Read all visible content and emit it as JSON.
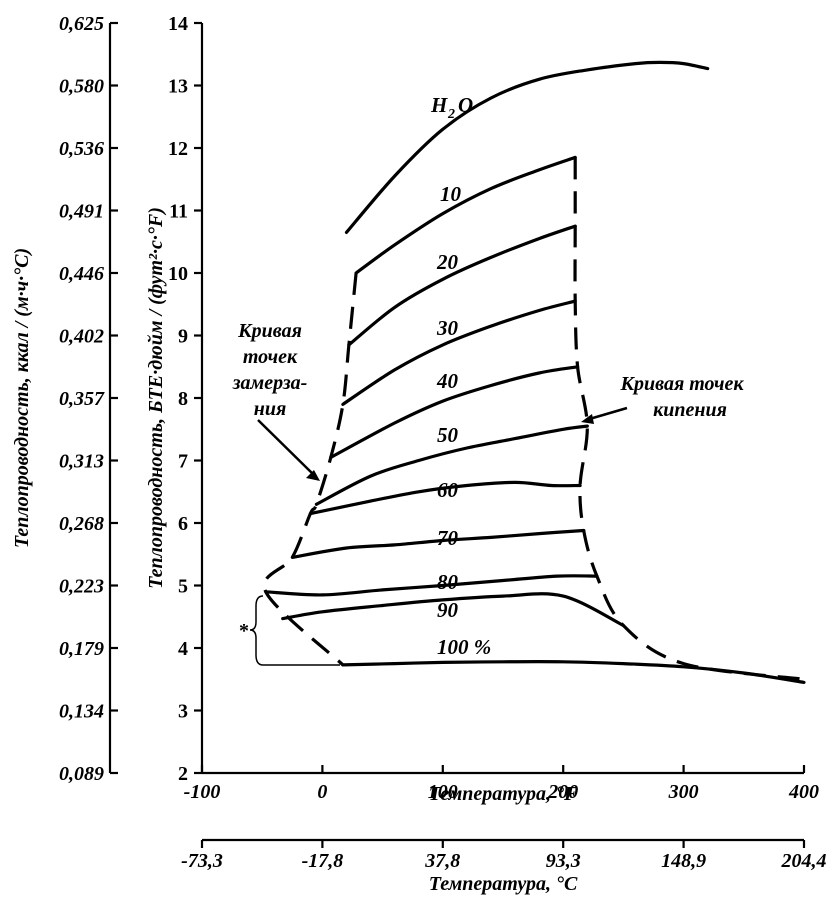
{
  "chart_data": {
    "type": "line",
    "x_axis": {
      "label": "Температура, °F",
      "ticks": [
        "-100",
        "0",
        "100",
        "200",
        "300",
        "400"
      ],
      "range": [
        -100,
        400
      ]
    },
    "x_axis_secondary": {
      "label": "Температура, °С",
      "ticks": [
        "-73,3",
        "-17,8",
        "37,8",
        "93,3",
        "148,9",
        "204,4"
      ]
    },
    "y_axis": {
      "label": "Теплопроводность, БТЕ·дюйм / (фут²·с·°F)",
      "ticks": [
        "2",
        "3",
        "4",
        "5",
        "6",
        "7",
        "8",
        "9",
        "10",
        "11",
        "12",
        "13",
        "14"
      ],
      "range": [
        2,
        14
      ]
    },
    "y_axis_secondary": {
      "label": "Теплопроводность, ккал / (м·ч·°С)",
      "ticks": [
        "0,089",
        "0,134",
        "0,179",
        "0,223",
        "0,268",
        "0,313",
        "0,357",
        "0,402",
        "0,446",
        "0,491",
        "0,536",
        "0,580",
        "0,625"
      ]
    },
    "series": [
      {
        "name": "H₂O",
        "x": [
          20,
          60,
          100,
          140,
          180,
          220,
          260,
          280,
          300,
          320
        ],
        "y": [
          10.65,
          11.55,
          12.3,
          12.8,
          13.1,
          13.25,
          13.35,
          13.37,
          13.35,
          13.27
        ]
      },
      {
        "name": "10",
        "x": [
          28,
          60,
          100,
          140,
          180,
          210
        ],
        "y": [
          10.0,
          10.45,
          10.95,
          11.35,
          11.65,
          11.85
        ]
      },
      {
        "name": "20",
        "x": [
          22,
          60,
          100,
          140,
          180,
          210
        ],
        "y": [
          8.85,
          9.45,
          9.9,
          10.25,
          10.55,
          10.75
        ]
      },
      {
        "name": "30",
        "x": [
          17,
          60,
          100,
          140,
          180,
          210
        ],
        "y": [
          7.9,
          8.45,
          8.85,
          9.15,
          9.4,
          9.55
        ]
      },
      {
        "name": "40",
        "x": [
          7,
          60,
          100,
          140,
          180,
          212
        ],
        "y": [
          7.05,
          7.6,
          7.95,
          8.2,
          8.4,
          8.5
        ]
      },
      {
        "name": "50",
        "x": [
          -5,
          40,
          80,
          120,
          160,
          200,
          220
        ],
        "y": [
          6.3,
          6.75,
          7.0,
          7.2,
          7.35,
          7.5,
          7.55
        ]
      },
      {
        "name": "60",
        "x": [
          -10,
          40,
          80,
          120,
          160,
          190,
          214
        ],
        "y": [
          6.15,
          6.35,
          6.5,
          6.6,
          6.65,
          6.6,
          6.6
        ]
      },
      {
        "name": "70",
        "x": [
          -25,
          20,
          60,
          100,
          140,
          180,
          217
        ],
        "y": [
          5.45,
          5.6,
          5.65,
          5.72,
          5.77,
          5.83,
          5.88
        ]
      },
      {
        "name": "80",
        "x": [
          -47,
          0,
          50,
          100,
          150,
          195,
          228
        ],
        "y": [
          4.9,
          4.85,
          4.93,
          5.0,
          5.08,
          5.15,
          5.15
        ]
      },
      {
        "name": "90",
        "x": [
          -33,
          0,
          50,
          100,
          150,
          200,
          250
        ],
        "y": [
          4.47,
          4.58,
          4.68,
          4.77,
          4.83,
          4.83,
          4.36
        ]
      },
      {
        "name": "100 %",
        "x": [
          17,
          60,
          100,
          150,
          200,
          250,
          300,
          350,
          400
        ],
        "y": [
          3.73,
          3.75,
          3.77,
          3.78,
          3.78,
          3.75,
          3.7,
          3.6,
          3.45
        ]
      }
    ],
    "annotations": {
      "freezing_curve": "Кривая точек замерза- ния",
      "boiling_curve": "Кривая точек кипения",
      "asterisk": "*"
    }
  },
  "labels": {
    "freeze_lines": [
      "Кривая",
      "точек",
      "замерза-",
      "ния"
    ],
    "boil_lines": [
      "Кривая точек",
      "кипения"
    ],
    "asterisk": "*"
  }
}
